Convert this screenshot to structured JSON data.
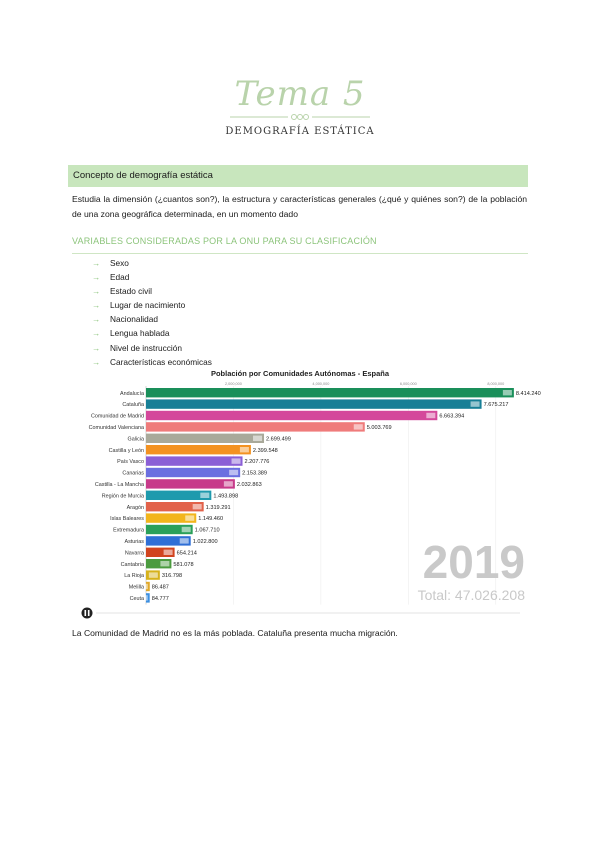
{
  "header": {
    "title": "Tema 5",
    "subtitle": "DEMOGRAFÍA ESTÁTICA"
  },
  "section": {
    "heading": "Concepto de demografía estática"
  },
  "definition": "Estudia la dimensión (¿cuantos son?), la estructura y características generales (¿qué y quiénes son?) de la población de una zona geográfica determinada, en un momento dado",
  "variables": {
    "heading": "VARIABLES CONSIDERADAS POR LA ONU PARA SU CLASIFICACIÓN",
    "arrow": "→",
    "items": [
      "Sexo",
      "Edad",
      "Estado civil",
      "Lugar de nacimiento",
      "Nacionalidad",
      "Lengua hablada",
      "Nivel de instrucción",
      "Características económicas"
    ]
  },
  "chart_data": {
    "type": "bar",
    "orientation": "horizontal",
    "title": "Población por Comunidades Autónomas - España",
    "year": "2019",
    "total_label": "Total: 47.026.208",
    "xlim": [
      0,
      8600000
    ],
    "axis_ticks": [
      "2,000,000",
      "4,000,000",
      "6,000,000",
      "8,000,000"
    ],
    "axis_tick_values": [
      2000000,
      4000000,
      6000000,
      8000000
    ],
    "categories": [
      "Andalucía",
      "Cataluña",
      "Comunidad de Madrid",
      "Comunidad Valenciana",
      "Galicia",
      "Castilla y León",
      "País Vasco",
      "Canarias",
      "Castilla - La Mancha",
      "Región de Murcia",
      "Aragón",
      "Islas Baleares",
      "Extremadura",
      "Asturias",
      "Navarra",
      "Cantabria",
      "La Rioja",
      "Melilla",
      "Ceuta"
    ],
    "values": [
      8414240,
      7675217,
      6663394,
      5003769,
      2699499,
      2399548,
      2207776,
      2153389,
      2032863,
      1493898,
      1319291,
      1149460,
      1067710,
      1022800,
      654214,
      581078,
      316798,
      86487,
      84777
    ],
    "value_labels": [
      "8.414.240",
      "7.675.217",
      "6.663.394",
      "5.003.769",
      "2.699.499",
      "2.399.548",
      "2.207.776",
      "2.153.389",
      "2.032.863",
      "1.493.898",
      "1.319.291",
      "1.149.460",
      "1.067.710",
      "1.022.800",
      "654.214",
      "581.078",
      "316.798",
      "86.487",
      "84.777"
    ],
    "colors": [
      "#1a8f5a",
      "#177f96",
      "#d4489b",
      "#ef7b7b",
      "#a9a99a",
      "#f39221",
      "#8b5fd6",
      "#6b6fe0",
      "#c73a8a",
      "#1f9aad",
      "#e2624a",
      "#f2b51b",
      "#2aa05a",
      "#2f6fd6",
      "#d1441f",
      "#4b9b3f",
      "#d6b21c",
      "#e0a82a",
      "#3d8fe0"
    ]
  },
  "caption": "La Comunidad de Madrid no es la más poblada. Cataluña presenta mucha migración."
}
